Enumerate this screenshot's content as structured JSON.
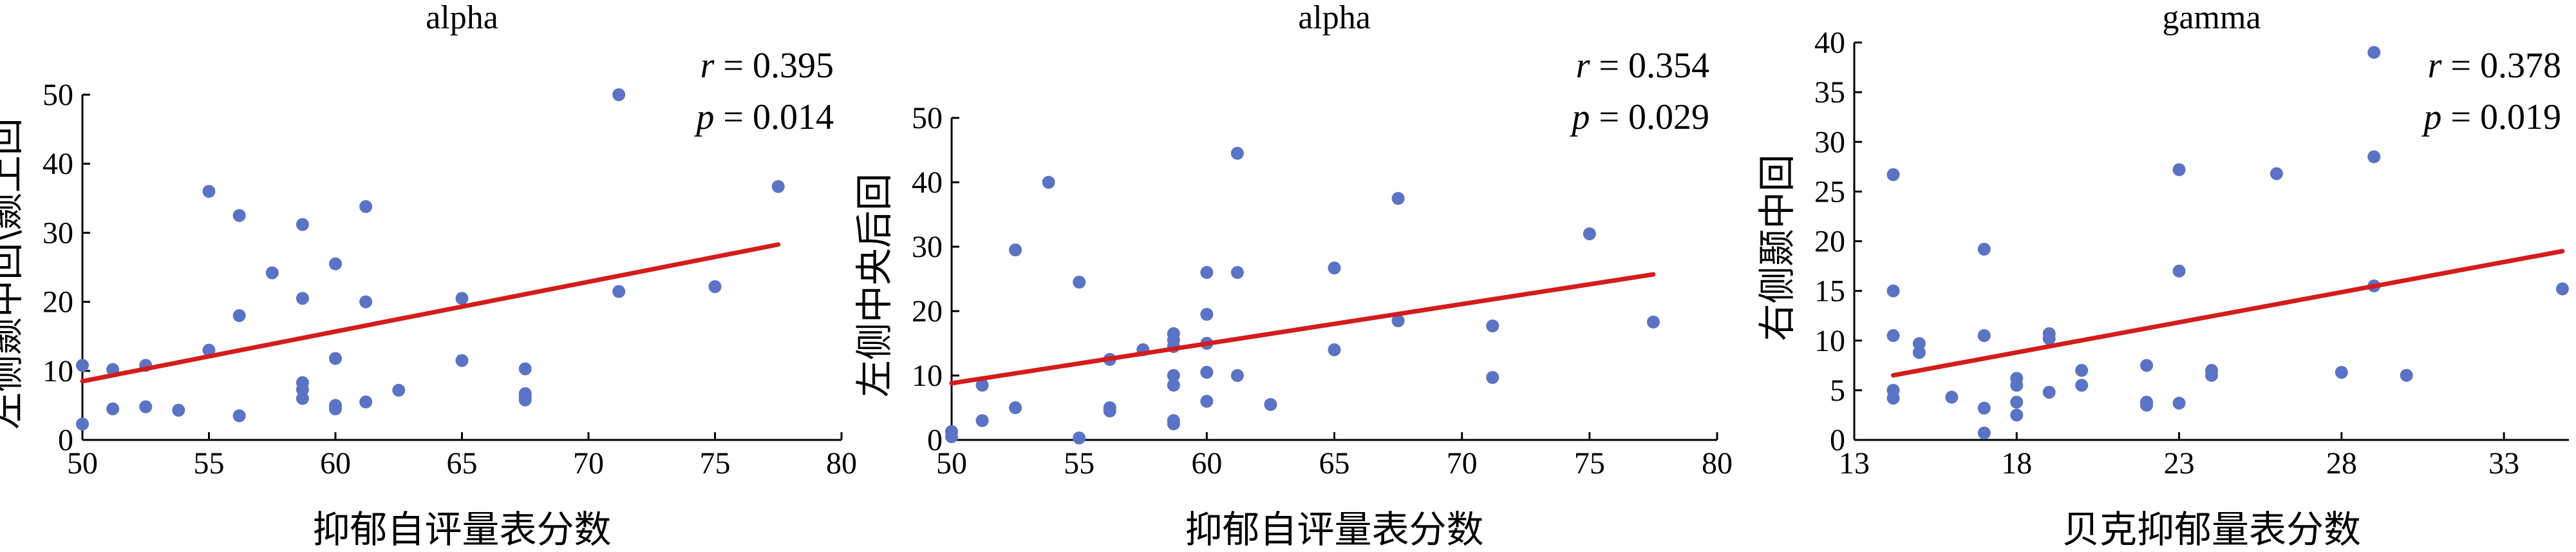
{
  "chart_data": [
    {
      "type": "scatter",
      "title": "alpha",
      "xlabel": "抑郁自评量表分数",
      "ylabel": "左侧颞中回\\颞上回",
      "xlim": [
        50,
        80
      ],
      "ylim": [
        0,
        50
      ],
      "xticks": [
        50,
        55,
        60,
        65,
        70,
        75,
        80
      ],
      "yticks": [
        0,
        10,
        20,
        30,
        40,
        50
      ],
      "stats": {
        "r_symbol": "r",
        "r_value": "= 0.395",
        "p_symbol": "p",
        "p_value": "= 0.014"
      },
      "point_color": "#5b73c4",
      "fit_color": "#d41c1c",
      "fit_line": {
        "x": [
          50,
          77.5
        ],
        "y": [
          8.5,
          28.3
        ]
      },
      "points": [
        {
          "x": 50,
          "y": 10.8
        },
        {
          "x": 50,
          "y": 2.3
        },
        {
          "x": 51.2,
          "y": 10.2
        },
        {
          "x": 51.2,
          "y": 4.5
        },
        {
          "x": 52.5,
          "y": 10.8
        },
        {
          "x": 52.5,
          "y": 4.8
        },
        {
          "x": 53.8,
          "y": 4.3
        },
        {
          "x": 55,
          "y": 36
        },
        {
          "x": 55,
          "y": 13
        },
        {
          "x": 56.2,
          "y": 32.5
        },
        {
          "x": 56.2,
          "y": 18
        },
        {
          "x": 56.2,
          "y": 3.5
        },
        {
          "x": 57.5,
          "y": 24.2
        },
        {
          "x": 58.7,
          "y": 31.2
        },
        {
          "x": 58.7,
          "y": 20.5
        },
        {
          "x": 58.7,
          "y": 8.3
        },
        {
          "x": 58.7,
          "y": 7.3
        },
        {
          "x": 58.7,
          "y": 6
        },
        {
          "x": 60,
          "y": 25.5
        },
        {
          "x": 60,
          "y": 11.8
        },
        {
          "x": 60,
          "y": 5
        },
        {
          "x": 60,
          "y": 4.5
        },
        {
          "x": 61.2,
          "y": 33.8
        },
        {
          "x": 61.2,
          "y": 20
        },
        {
          "x": 61.2,
          "y": 5.5
        },
        {
          "x": 62.5,
          "y": 7.2
        },
        {
          "x": 65,
          "y": 20.5
        },
        {
          "x": 65,
          "y": 11.5
        },
        {
          "x": 67.5,
          "y": 10.3
        },
        {
          "x": 67.5,
          "y": 6.7
        },
        {
          "x": 67.5,
          "y": 6.2
        },
        {
          "x": 67.5,
          "y": 5.8
        },
        {
          "x": 71.2,
          "y": 50
        },
        {
          "x": 71.2,
          "y": 21.5
        },
        {
          "x": 75,
          "y": 22.2
        },
        {
          "x": 77.5,
          "y": 36.7
        }
      ]
    },
    {
      "type": "scatter",
      "title": "alpha",
      "xlabel": "抑郁自评量表分数",
      "ylabel": "左侧中央后回",
      "xlim": [
        50,
        80
      ],
      "ylim": [
        0,
        50
      ],
      "xticks": [
        50,
        55,
        60,
        65,
        70,
        75,
        80
      ],
      "yticks": [
        0,
        10,
        20,
        30,
        40,
        50
      ],
      "stats": {
        "r_symbol": "r",
        "r_value": "= 0.354",
        "p_symbol": "p",
        "p_value": "= 0.029"
      },
      "point_color": "#5b73c4",
      "fit_color": "#d41c1c",
      "fit_line": {
        "x": [
          50,
          77.5
        ],
        "y": [
          8.8,
          25.7
        ]
      },
      "points": [
        {
          "x": 50,
          "y": 1.3
        },
        {
          "x": 50,
          "y": 0.5
        },
        {
          "x": 51.2,
          "y": 8.5
        },
        {
          "x": 51.2,
          "y": 3
        },
        {
          "x": 52.5,
          "y": 29.5
        },
        {
          "x": 52.5,
          "y": 5
        },
        {
          "x": 53.8,
          "y": 40
        },
        {
          "x": 55,
          "y": 24.5
        },
        {
          "x": 55,
          "y": 0.3
        },
        {
          "x": 56.2,
          "y": 12.5
        },
        {
          "x": 56.2,
          "y": 5
        },
        {
          "x": 56.2,
          "y": 4.5
        },
        {
          "x": 57.5,
          "y": 14
        },
        {
          "x": 58.7,
          "y": 16.5
        },
        {
          "x": 58.7,
          "y": 15.5
        },
        {
          "x": 58.7,
          "y": 14.5
        },
        {
          "x": 58.7,
          "y": 10
        },
        {
          "x": 58.7,
          "y": 8.5
        },
        {
          "x": 58.7,
          "y": 3
        },
        {
          "x": 58.7,
          "y": 2.5
        },
        {
          "x": 60,
          "y": 26
        },
        {
          "x": 60,
          "y": 19.5
        },
        {
          "x": 60,
          "y": 15
        },
        {
          "x": 60,
          "y": 10.5
        },
        {
          "x": 60,
          "y": 6
        },
        {
          "x": 61.2,
          "y": 44.5
        },
        {
          "x": 61.2,
          "y": 26
        },
        {
          "x": 61.2,
          "y": 10
        },
        {
          "x": 62.5,
          "y": 5.5
        },
        {
          "x": 65,
          "y": 26.7
        },
        {
          "x": 65,
          "y": 14
        },
        {
          "x": 67.5,
          "y": 37.5
        },
        {
          "x": 67.5,
          "y": 18.5
        },
        {
          "x": 71.2,
          "y": 17.7
        },
        {
          "x": 71.2,
          "y": 9.7
        },
        {
          "x": 75,
          "y": 32
        },
        {
          "x": 77.5,
          "y": 18.3
        }
      ]
    },
    {
      "type": "scatter",
      "title": "gamma",
      "xlabel": "贝克抑郁量表分数",
      "ylabel": "右侧颞中回",
      "xlim": [
        13,
        35
      ],
      "ylim": [
        0,
        40
      ],
      "xticks": [
        13,
        18,
        23,
        28,
        33
      ],
      "yticks": [
        0,
        5,
        10,
        15,
        20,
        25,
        30,
        35,
        40
      ],
      "stats": {
        "r_symbol": "r",
        "r_value": "= 0.378",
        "p_symbol": "p",
        "p_value": "= 0.019"
      },
      "point_color": "#5b73c4",
      "fit_color": "#d41c1c",
      "fit_line": {
        "x": [
          14.2,
          34.8
        ],
        "y": [
          6.5,
          19
        ]
      },
      "points": [
        {
          "x": 14.2,
          "y": 26.7
        },
        {
          "x": 14.2,
          "y": 15
        },
        {
          "x": 14.2,
          "y": 10.5
        },
        {
          "x": 14.2,
          "y": 5
        },
        {
          "x": 14.2,
          "y": 4.2
        },
        {
          "x": 15,
          "y": 9.7
        },
        {
          "x": 15,
          "y": 8.8
        },
        {
          "x": 16,
          "y": 4.3
        },
        {
          "x": 17,
          "y": 19.2
        },
        {
          "x": 17,
          "y": 10.5
        },
        {
          "x": 17,
          "y": 3.2
        },
        {
          "x": 17,
          "y": 0.7
        },
        {
          "x": 18,
          "y": 6.2
        },
        {
          "x": 18,
          "y": 5.5
        },
        {
          "x": 18,
          "y": 3.8
        },
        {
          "x": 18,
          "y": 2.5
        },
        {
          "x": 19,
          "y": 10.7
        },
        {
          "x": 19,
          "y": 10.2
        },
        {
          "x": 19,
          "y": 4.8
        },
        {
          "x": 20,
          "y": 7
        },
        {
          "x": 20,
          "y": 5.5
        },
        {
          "x": 22,
          "y": 7.5
        },
        {
          "x": 22,
          "y": 3.8
        },
        {
          "x": 22,
          "y": 3.5
        },
        {
          "x": 23,
          "y": 27.2
        },
        {
          "x": 23,
          "y": 17
        },
        {
          "x": 23,
          "y": 3.7
        },
        {
          "x": 24,
          "y": 7
        },
        {
          "x": 24,
          "y": 6.5
        },
        {
          "x": 26,
          "y": 26.8
        },
        {
          "x": 28,
          "y": 6.8
        },
        {
          "x": 29,
          "y": 39
        },
        {
          "x": 29,
          "y": 28.5
        },
        {
          "x": 29,
          "y": 15.5
        },
        {
          "x": 30,
          "y": 6.5
        },
        {
          "x": 34.8,
          "y": 15.2
        }
      ]
    }
  ]
}
